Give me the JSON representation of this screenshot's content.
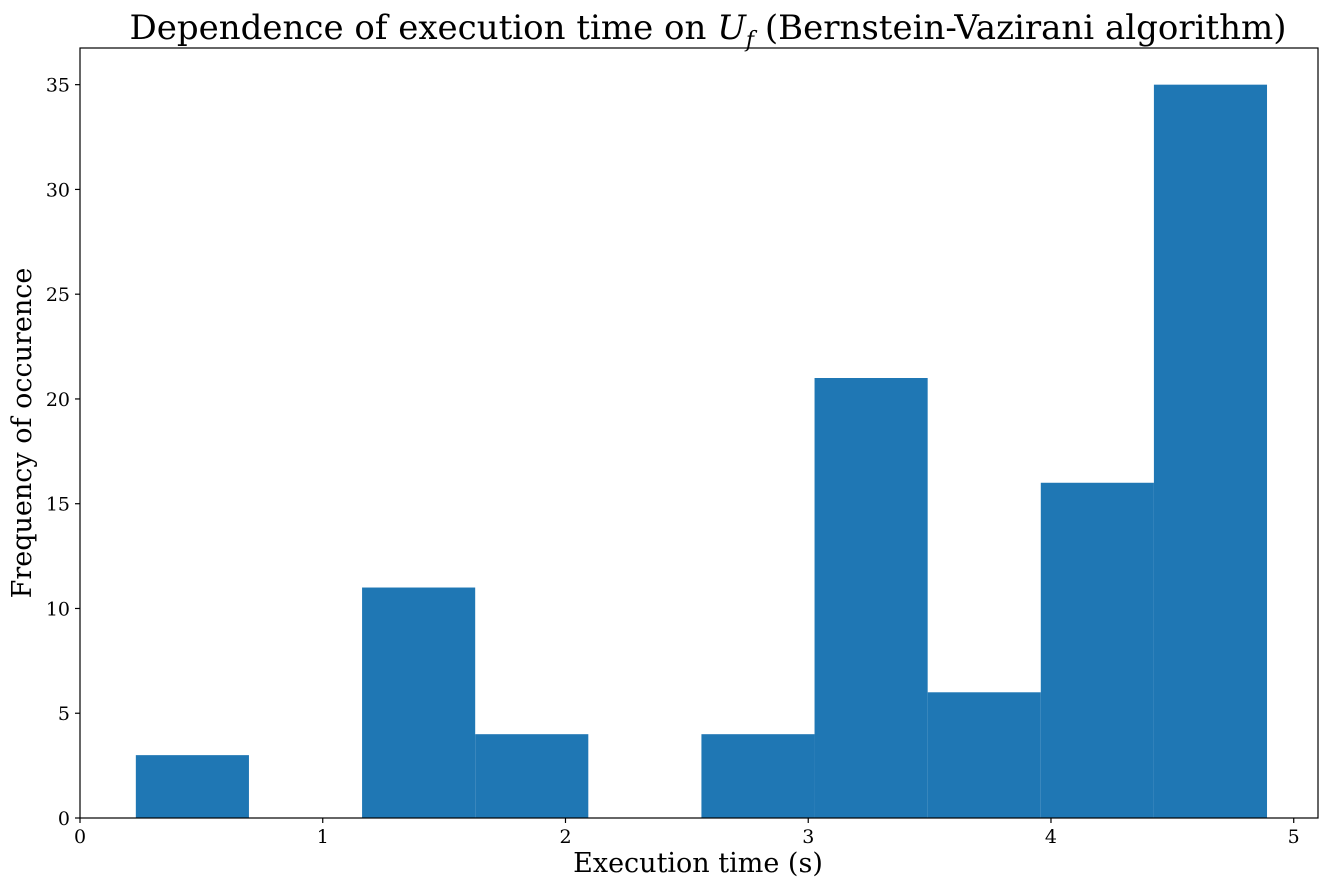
{
  "chart_data": {
    "type": "bar",
    "title": {
      "prefix": "Dependence of execution time on ",
      "symbol": "U",
      "subscript": "f",
      "suffix": " (Bernstein-Vazirani algorithm)"
    },
    "xlabel": "Execution time (s)",
    "ylabel": "Frequency of occurence",
    "xlim": [
      0,
      5.1
    ],
    "ylim": [
      0,
      36.75
    ],
    "xticks": [
      0,
      1,
      2,
      3,
      4,
      5
    ],
    "yticks": [
      0,
      5,
      10,
      15,
      20,
      25,
      30,
      35
    ],
    "grid": false,
    "bar_color": "#1f77b4",
    "bins": [
      {
        "x0": 0.23,
        "x1": 0.696,
        "count": 3
      },
      {
        "x0": 0.696,
        "x1": 1.162,
        "count": 0
      },
      {
        "x0": 1.162,
        "x1": 1.628,
        "count": 11
      },
      {
        "x0": 1.628,
        "x1": 2.094,
        "count": 4
      },
      {
        "x0": 2.094,
        "x1": 2.56,
        "count": 0
      },
      {
        "x0": 2.56,
        "x1": 3.026,
        "count": 4
      },
      {
        "x0": 3.026,
        "x1": 3.492,
        "count": 21
      },
      {
        "x0": 3.492,
        "x1": 3.958,
        "count": 6
      },
      {
        "x0": 3.958,
        "x1": 4.424,
        "count": 16
      },
      {
        "x0": 4.424,
        "x1": 4.89,
        "count": 35
      }
    ]
  }
}
